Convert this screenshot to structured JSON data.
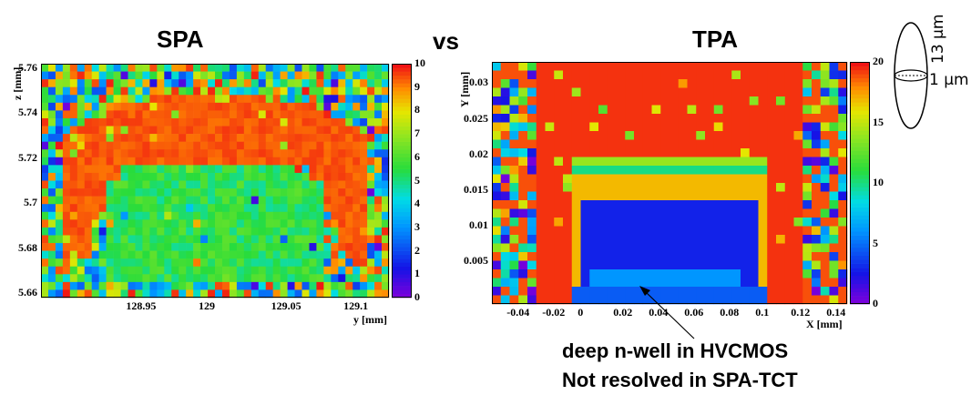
{
  "titles": {
    "left": "SPA",
    "middle": "vs",
    "right": "TPA"
  },
  "annotation": {
    "line1": "deep n-well in HVCMOS",
    "line2": "Not resolved in SPA-TCT"
  },
  "beam_spot": {
    "height_label": "13 µm",
    "width_label": "1 µm"
  },
  "chart_data": [
    {
      "type": "heatmap",
      "title": "SPA",
      "xlabel": "y [mm]",
      "ylabel": "z [mm]",
      "xlim": [
        128.88,
        129.12
      ],
      "ylim": [
        5.658,
        5.762
      ],
      "x_ticks": [
        "128.95",
        "129",
        "129.05",
        "129.1"
      ],
      "x_tick_values": [
        128.95,
        129.0,
        129.05,
        129.1
      ],
      "y_ticks": [
        "5.66",
        "5.68",
        "5.7",
        "5.72",
        "5.74",
        "5.76"
      ],
      "y_tick_values": [
        5.66,
        5.68,
        5.7,
        5.72,
        5.74,
        5.76
      ],
      "colorbar": {
        "min": 0,
        "max": 10,
        "ticks": [
          "0",
          "1",
          "2",
          "3",
          "4",
          "5",
          "6",
          "7",
          "8",
          "9",
          "10"
        ]
      },
      "grid": {
        "nx": 48,
        "ny": 30
      },
      "regions": [
        {
          "description": "red arc (signal high)",
          "value": 9.5,
          "z_range": [
            5.705,
            5.752
          ]
        },
        {
          "description": "green core",
          "value": 5.5,
          "z_range": [
            5.672,
            5.718
          ],
          "y_range": [
            128.94,
            129.06
          ]
        },
        {
          "description": "noise background",
          "value_range": [
            0,
            10
          ]
        }
      ]
    },
    {
      "type": "heatmap",
      "title": "TPA",
      "xlabel": "X [mm]",
      "ylabel": "Y [mm]",
      "xlim": [
        -0.055,
        0.145
      ],
      "ylim": [
        -0.001,
        0.033
      ],
      "x_ticks": [
        "-0.04",
        "-0.02",
        "0",
        "0.02",
        "0.04",
        "0.06",
        "0.08",
        "0.1",
        "0.12",
        "0.14"
      ],
      "x_tick_values": [
        -0.04,
        -0.02,
        0,
        0.02,
        0.04,
        0.06,
        0.08,
        0.1,
        0.12,
        0.14
      ],
      "y_ticks": [
        "0.005",
        "0.01",
        "0.015",
        "0.02",
        "0.025",
        "0.03"
      ],
      "y_tick_values": [
        0.005,
        0.01,
        0.015,
        0.02,
        0.025,
        0.03
      ],
      "colorbar": {
        "min": 0,
        "max": 20,
        "ticks": [
          "0",
          "5",
          "10",
          "15",
          "20"
        ]
      },
      "grid": {
        "nx": 40,
        "ny": 28
      },
      "regions": [
        {
          "description": "red depleted region",
          "value": 19.5
        },
        {
          "description": "blue n-well",
          "value": 2,
          "x_range": [
            -0.012,
            0.102
          ],
          "y_range": [
            0,
            0.02
          ]
        },
        {
          "description": "light-blue deep n-well",
          "value": 6,
          "x_range": [
            0.0,
            0.085
          ],
          "y_range": [
            0,
            0.0035
          ]
        }
      ]
    }
  ]
}
